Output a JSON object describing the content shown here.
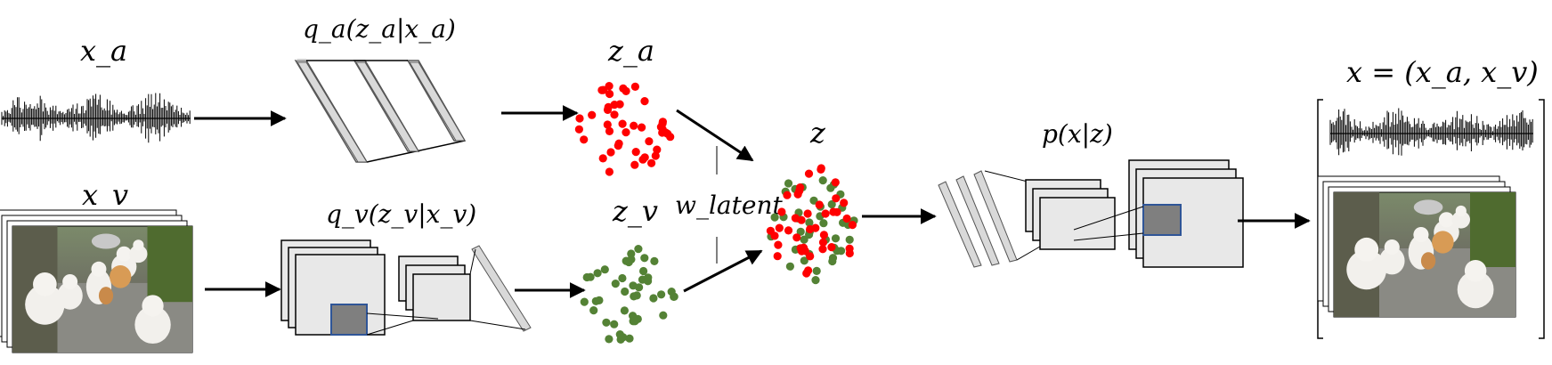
{
  "labels": {
    "xa": "x_a",
    "xv": "x_v",
    "qa": "q_a(z_a|x_a)",
    "qv": "q_v(z_v|x_v)",
    "za": "z_a",
    "zv": "z_v",
    "w": "w_latent",
    "z": "z",
    "p": "p(x|z)",
    "x": "x = (x_a, x_v)"
  },
  "colors": {
    "audio_latent": "#ff0000",
    "video_latent": "#548235",
    "box_fill": "#e8e8e8",
    "inner_patch": "#7f7f7f",
    "patch_border": "#2f5597"
  },
  "icons": {
    "audio_waveform": "waveform-icon",
    "video_frames": "cat-video-frames-icon"
  }
}
